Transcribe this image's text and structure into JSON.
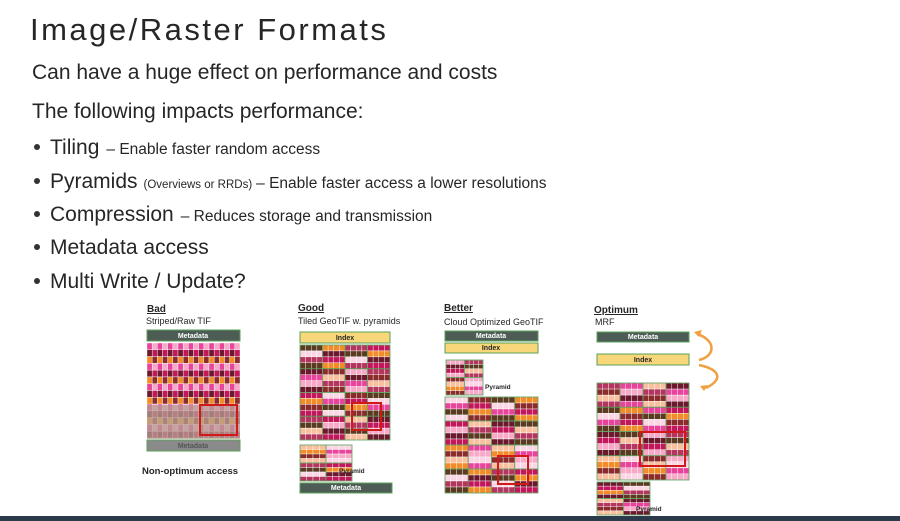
{
  "title": "Image/Raster Formats",
  "subtitle": "Can have a huge effect on performance and costs",
  "intro": "The following impacts performance:",
  "bullets": [
    {
      "term": "Tiling",
      "note": "– Enable faster random access"
    },
    {
      "term": "Pyramids",
      "aside": "(Overviews or RRDs)",
      "note": "– Enable faster access a lower resolutions"
    },
    {
      "term": "Compression",
      "note": "– Reduces storage and transmission"
    },
    {
      "term": "Metadata access"
    },
    {
      "term": "Multi Write / Update?"
    }
  ],
  "diagrams": [
    {
      "heading": "Bad",
      "caption": "Striped/Raw TIF",
      "labels": [
        "Metadata",
        "Metadata"
      ],
      "footer": "Non-optimum access"
    },
    {
      "heading": "Good",
      "caption": "Tiled GeoTIF w. pyramids",
      "labels": [
        "Index",
        "Pyramid",
        "Metadata"
      ]
    },
    {
      "heading": "Better",
      "caption": "Cloud Optimized GeoTIF",
      "labels": [
        "Metadata",
        "Index",
        "Pyramid"
      ]
    },
    {
      "heading": "Optimum",
      "caption": "MRF",
      "labels": [
        "Metadata",
        "Index",
        "Pyramid"
      ]
    }
  ]
}
